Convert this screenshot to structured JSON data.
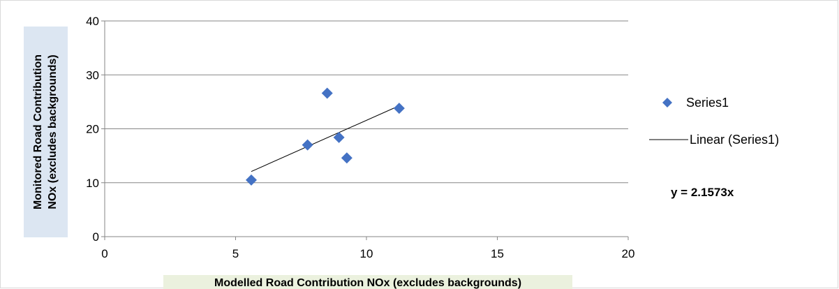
{
  "chart_data": {
    "type": "scatter",
    "title": "",
    "xlabel": "Modelled Road Contribution NOx (excludes backgrounds)",
    "ylabel_lines": [
      "Monitored Road Contribution",
      "NOx (excludes backgrounds)"
    ],
    "xlim": [
      0,
      20
    ],
    "ylim": [
      0,
      40
    ],
    "x_ticks": [
      0,
      5,
      10,
      15,
      20
    ],
    "y_ticks": [
      0,
      10,
      20,
      30,
      40
    ],
    "grid": "horizontal",
    "legend_position": "right",
    "series": [
      {
        "name": "Series1",
        "marker": "diamond",
        "color": "#4472C4",
        "x": [
          5.6,
          7.75,
          8.5,
          8.95,
          9.25,
          11.25
        ],
        "y": [
          10.5,
          17.0,
          26.6,
          18.4,
          14.6,
          23.8
        ]
      }
    ],
    "trendline": {
      "name": "Linear (Series1)",
      "equation": "y = 2.1573x",
      "slope": 2.1573,
      "x_range": [
        5.6,
        11.25
      ],
      "color": "#000000"
    },
    "colors": {
      "axis_title_bg_y": "#dce6f2",
      "axis_title_bg_x": "#ebf1de",
      "gridline": "#868686"
    }
  }
}
